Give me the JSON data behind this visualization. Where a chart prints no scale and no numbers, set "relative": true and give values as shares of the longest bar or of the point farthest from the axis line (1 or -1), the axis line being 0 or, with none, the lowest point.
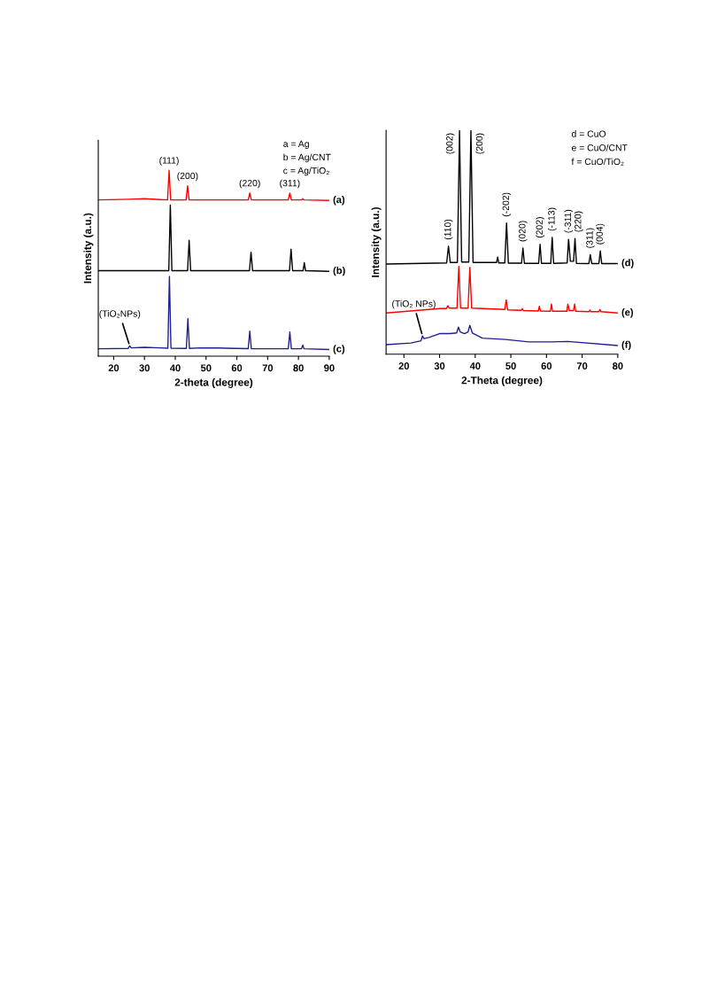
{
  "chart_data": [
    {
      "type": "line",
      "relative": true,
      "xlabel": "2-theta (degree)",
      "ylabel": "Intensity (a.u.)",
      "xlim": [
        15,
        90
      ],
      "xticks": [
        20,
        30,
        40,
        50,
        60,
        70,
        80,
        90
      ],
      "grid": false,
      "legend": false,
      "marker": "none",
      "line_style": "solid",
      "series": [
        {
          "name": "(a)",
          "color": "#ff0000",
          "x": [
            15,
            25,
            30,
            35,
            37.5,
            38,
            38.5,
            43.5,
            44,
            44.5,
            63.7,
            64.2,
            64.7,
            76.7,
            77.2,
            77.7,
            81,
            81.4,
            81.8,
            90
          ],
          "values": [
            0.841,
            0.845,
            0.848,
            0.843,
            0.841,
            1.0,
            0.841,
            0.841,
            0.917,
            0.841,
            0.841,
            0.878,
            0.841,
            0.841,
            0.878,
            0.841,
            0.841,
            0.848,
            0.841,
            0.838
          ]
        },
        {
          "name": "(b)",
          "color": "#000000",
          "x": [
            15,
            30,
            37.9,
            38.4,
            38.9,
            44.0,
            44.5,
            45.0,
            64.1,
            64.6,
            65.1,
            77.1,
            77.6,
            78.1,
            81.5,
            81.9,
            82.3,
            90
          ],
          "values": [
            0.46,
            0.46,
            0.46,
            0.814,
            0.46,
            0.46,
            0.624,
            0.46,
            0.46,
            0.56,
            0.46,
            0.46,
            0.576,
            0.46,
            0.46,
            0.503,
            0.46,
            0.457
          ]
        },
        {
          "name": "(c)",
          "color": "#1f1f8f",
          "x": [
            15,
            24.7,
            25.2,
            25.7,
            30,
            35,
            37.6,
            38.1,
            38.6,
            43.6,
            44.1,
            44.6,
            48,
            54,
            63.7,
            64.2,
            64.7,
            76.7,
            77.2,
            77.7,
            81,
            81.4,
            81.8,
            90
          ],
          "values": [
            0.04,
            0.042,
            0.056,
            0.045,
            0.048,
            0.045,
            0.043,
            0.429,
            0.043,
            0.042,
            0.202,
            0.042,
            0.045,
            0.044,
            0.041,
            0.135,
            0.041,
            0.04,
            0.13,
            0.04,
            0.04,
            0.06,
            0.04,
            0.036
          ]
        }
      ],
      "annotations": [
        "a = Ag",
        "b = Ag/CNT",
        "c = Ag/TiO₂",
        {
          "text": "(111)",
          "x": 38.0,
          "y": 1.0
        },
        {
          "text": "(200)",
          "x": 44.0,
          "y": 0.917
        },
        {
          "text": "(220)",
          "x": 64.2,
          "y": 0.878
        },
        {
          "text": "(311)",
          "x": 77.2,
          "y": 0.878
        },
        {
          "text": "(TiO₂NPs)",
          "x": 25.2,
          "y": 0.056
        }
      ]
    },
    {
      "type": "line",
      "relative": true,
      "xlabel": "2-Theta (degree)",
      "ylabel": "Intensity (a.u.)",
      "xlim": [
        15,
        80
      ],
      "xticks": [
        20,
        30,
        40,
        50,
        60,
        70,
        80
      ],
      "grid": false,
      "legend": false,
      "marker": "none",
      "line_style": "solid",
      "series": [
        {
          "name": "(d)",
          "color": "#000000",
          "x": [
            15,
            32,
            32.5,
            33,
            35.0,
            35.6,
            36.2,
            38.2,
            38.8,
            39.4,
            46,
            46.3,
            46.6,
            48.3,
            48.8,
            49.3,
            53,
            53.4,
            53.8,
            57.8,
            58.2,
            58.6,
            61.2,
            61.6,
            62,
            65.8,
            66.2,
            66.7,
            67.6,
            68.0,
            68.4,
            71.9,
            72.3,
            72.7,
            74.7,
            75.1,
            75.5,
            80
          ],
          "values": [
            0.403,
            0.408,
            0.483,
            0.41,
            0.41,
            1.0,
            0.412,
            0.412,
            1.0,
            0.41,
            0.41,
            0.434,
            0.408,
            0.408,
            0.586,
            0.407,
            0.407,
            0.474,
            0.406,
            0.406,
            0.491,
            0.406,
            0.406,
            0.522,
            0.406,
            0.408,
            0.513,
            0.415,
            0.415,
            0.517,
            0.406,
            0.405,
            0.445,
            0.405,
            0.405,
            0.461,
            0.405,
            0.405
          ]
        },
        {
          "name": "(e)",
          "color": "#ff0000",
          "x": [
            15,
            30,
            31.9,
            32.3,
            32.7,
            34.9,
            35.4,
            35.9,
            38.0,
            38.5,
            39.0,
            48.3,
            48.7,
            49.1,
            52.9,
            53.2,
            53.5,
            57.7,
            58.0,
            58.3,
            61.1,
            61.4,
            61.7,
            65.7,
            66.0,
            66.4,
            67.6,
            67.9,
            68.2,
            71.9,
            72.2,
            72.5,
            74.7,
            75.0,
            75.3,
            80
          ],
          "values": [
            0.184,
            0.204,
            0.204,
            0.217,
            0.206,
            0.206,
            0.392,
            0.206,
            0.206,
            0.388,
            0.206,
            0.2,
            0.243,
            0.198,
            0.196,
            0.204,
            0.195,
            0.193,
            0.214,
            0.193,
            0.192,
            0.224,
            0.192,
            0.192,
            0.224,
            0.195,
            0.195,
            0.224,
            0.192,
            0.19,
            0.197,
            0.19,
            0.19,
            0.2,
            0.19,
            0.184
          ]
        },
        {
          "name": "(f)",
          "color": "#1f1f8f",
          "x": [
            15,
            22,
            24.8,
            25.2,
            25.6,
            27,
            30,
            33,
            34.8,
            35.3,
            35.8,
            37,
            38.0,
            38.5,
            39.2,
            42,
            48.5,
            55,
            61.4,
            66,
            80
          ],
          "values": [
            0.043,
            0.05,
            0.06,
            0.082,
            0.07,
            0.075,
            0.092,
            0.092,
            0.095,
            0.121,
            0.1,
            0.092,
            0.1,
            0.129,
            0.095,
            0.072,
            0.066,
            0.055,
            0.055,
            0.057,
            0.039
          ]
        }
      ],
      "annotations": [
        "d = CuO",
        "e = CuO/CNT",
        "f = CuO/TiO₂",
        {
          "text": "(110)",
          "x": 32.5,
          "y": 0.483
        },
        {
          "text": "(002)",
          "x": 35.6,
          "y": 1.0
        },
        {
          "text": "(200)",
          "x": 38.8,
          "y": 1.0
        },
        {
          "text": "(-202)",
          "x": 48.8,
          "y": 0.586
        },
        {
          "text": "(020)",
          "x": 53.4,
          "y": 0.474
        },
        {
          "text": "(202)",
          "x": 58.2,
          "y": 0.491
        },
        {
          "text": "(-113)",
          "x": 61.6,
          "y": 0.522
        },
        {
          "text": "(-311)",
          "x": 66.2,
          "y": 0.513
        },
        {
          "text": "(220)",
          "x": 68.0,
          "y": 0.517
        },
        {
          "text": "(311)",
          "x": 72.3,
          "y": 0.445
        },
        {
          "text": "(004)",
          "x": 75.1,
          "y": 0.461
        },
        {
          "text": "(TiO₂ NPs)",
          "x": 25.2,
          "y": 0.082
        }
      ]
    }
  ]
}
